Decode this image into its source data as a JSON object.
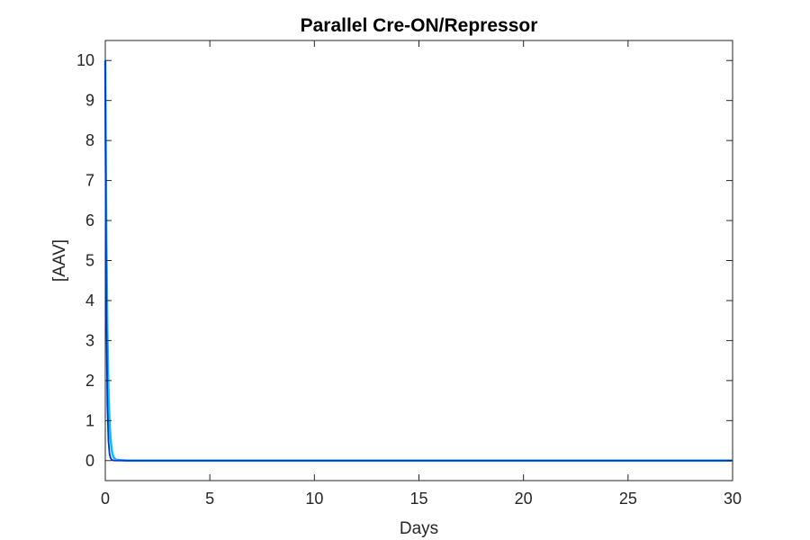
{
  "chart_data": {
    "type": "line",
    "title": "Parallel Cre-ON/Repressor",
    "xlabel": "Days",
    "ylabel": "[AAV]",
    "xlim": [
      0,
      30
    ],
    "ylim": [
      -0.5,
      10.5
    ],
    "x_ticks": [
      0,
      5,
      10,
      15,
      20,
      25,
      30
    ],
    "x_tick_labels": [
      "0",
      "5",
      "10",
      "15",
      "20",
      "25",
      "30"
    ],
    "y_ticks": [
      0,
      1,
      2,
      3,
      4,
      5,
      6,
      7,
      8,
      9,
      10
    ],
    "y_tick_labels": [
      "0",
      "1",
      "2",
      "3",
      "4",
      "5",
      "6",
      "7",
      "8",
      "9",
      "10"
    ],
    "grid": false,
    "legend": "none",
    "series": [
      {
        "color": "#00bfff",
        "x": [
          0,
          0.02,
          0.05,
          0.1,
          0.15,
          0.2,
          0.25,
          0.3,
          0.35,
          0.4,
          0.5,
          1,
          30
        ],
        "y": [
          10,
          8.0,
          5.6,
          3.2,
          1.8,
          1.0,
          0.55,
          0.3,
          0.15,
          0.08,
          0.02,
          0,
          0
        ]
      },
      {
        "color": "#0033cc",
        "x": [
          0,
          0.02,
          0.05,
          0.1,
          0.15,
          0.2,
          0.25,
          0.3,
          0.35,
          0.4,
          0.5,
          1,
          30
        ],
        "y": [
          10,
          6.7,
          3.7,
          1.35,
          0.5,
          0.18,
          0.07,
          0.025,
          0.01,
          0.004,
          0,
          0,
          0
        ]
      }
    ]
  }
}
